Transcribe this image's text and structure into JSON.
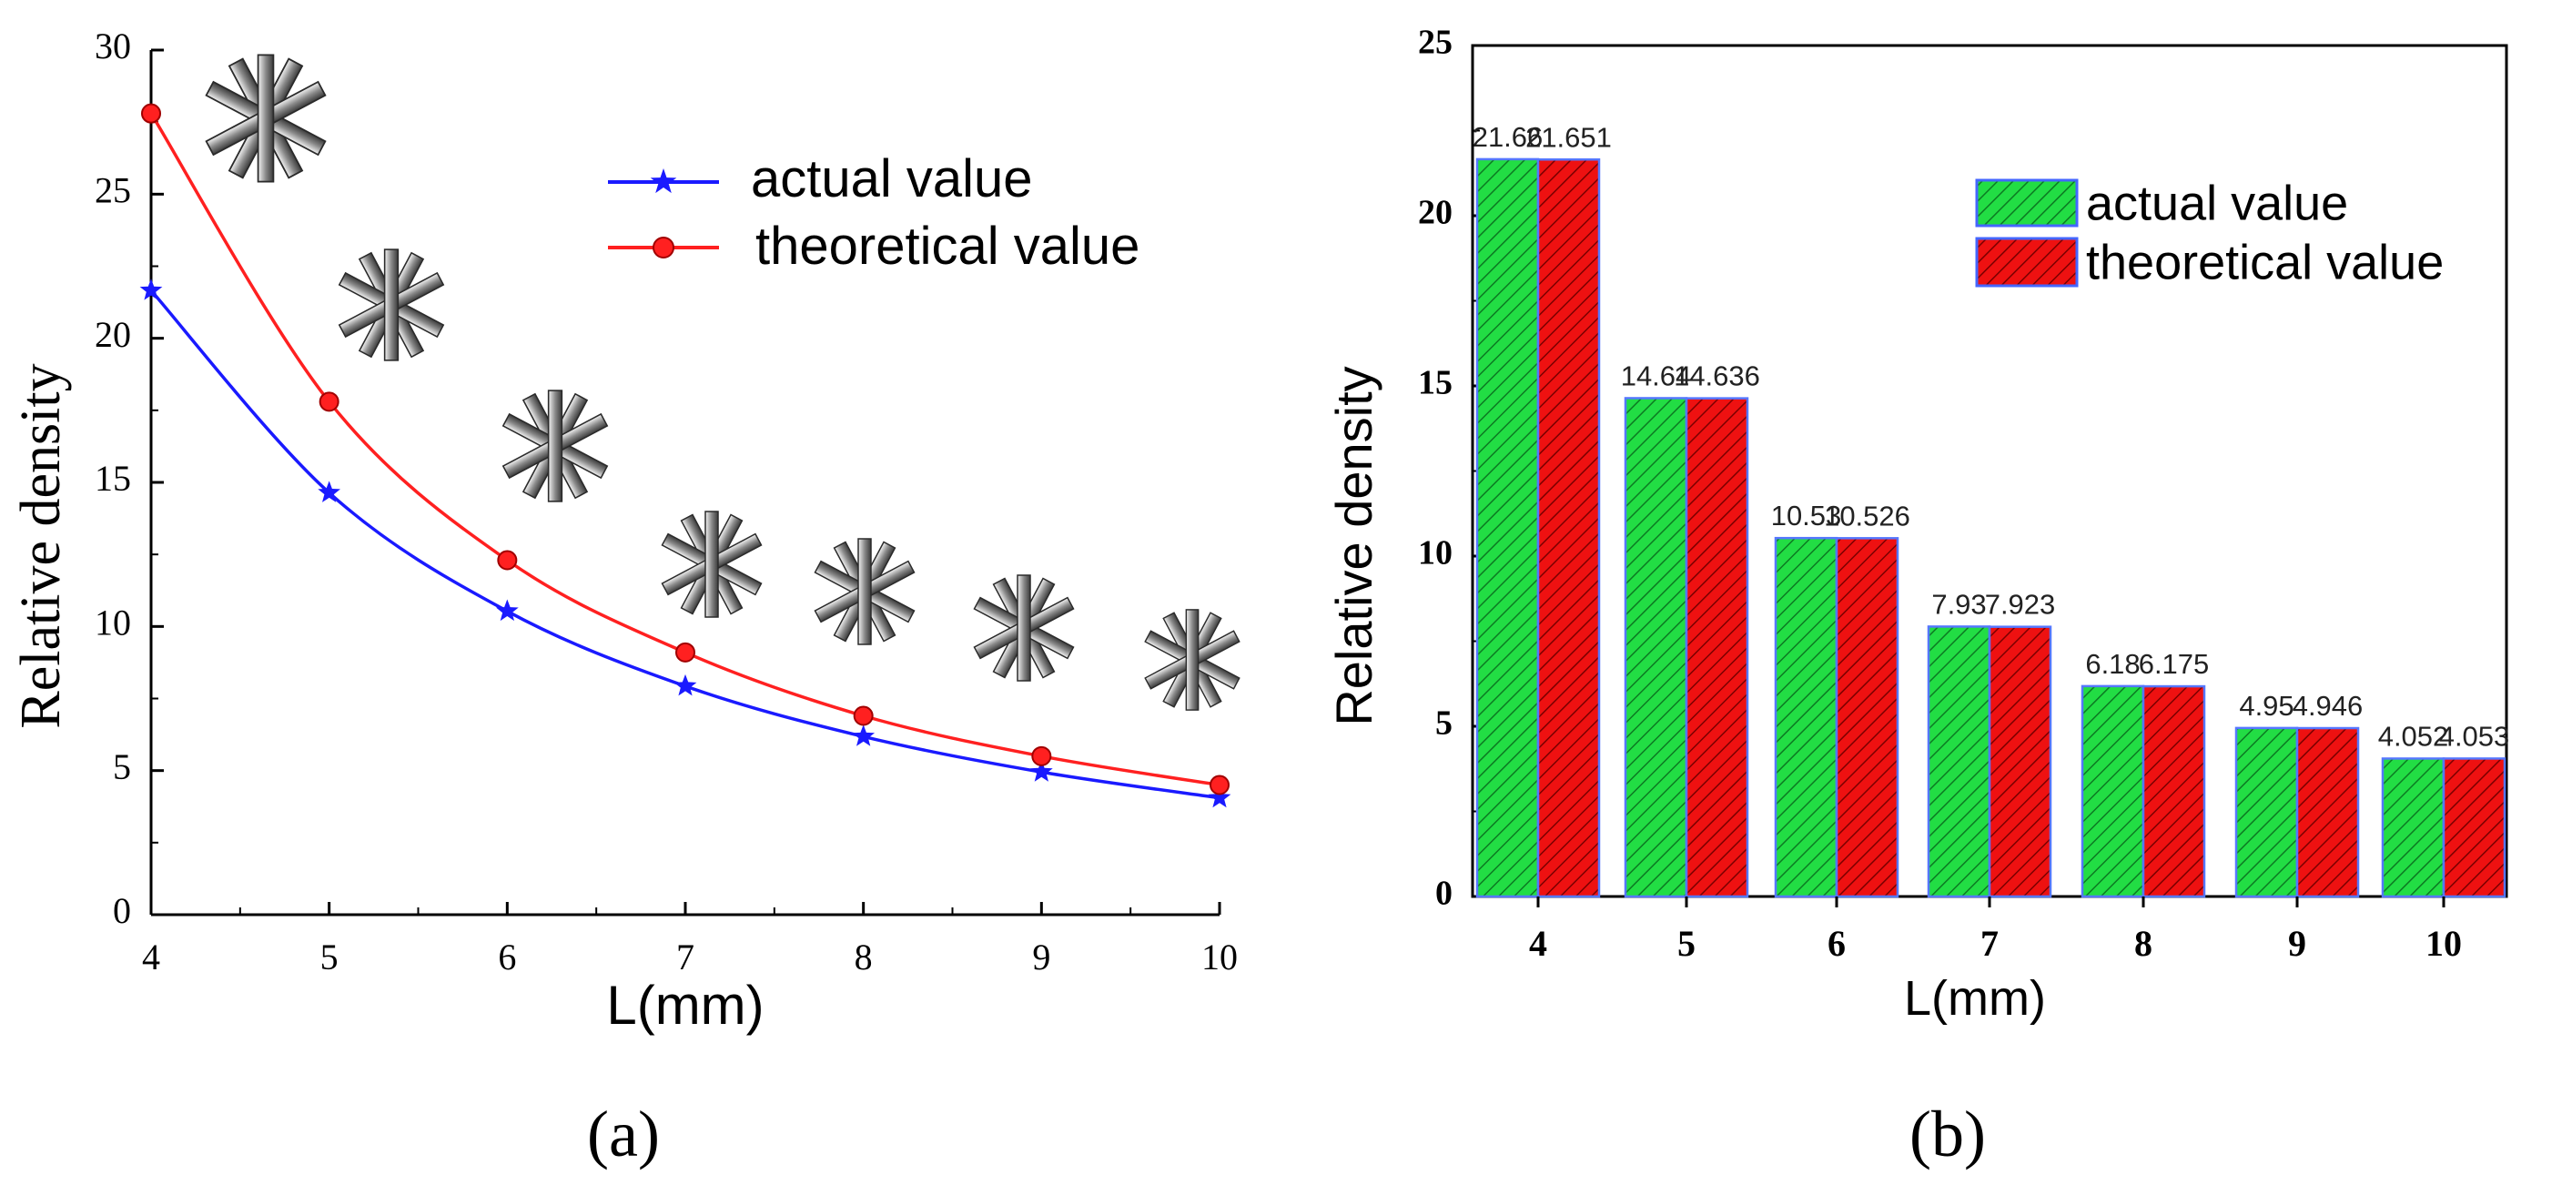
{
  "chart_data": [
    {
      "type": "line",
      "panel_label": "(a)",
      "xlabel": "L(mm)",
      "ylabel": "Relative density",
      "xlim": [
        4,
        10
      ],
      "ylim": [
        0,
        30
      ],
      "x_ticks": [
        "4",
        "5",
        "6",
        "7",
        "8",
        "9",
        "10"
      ],
      "y_ticks": [
        "0",
        "5",
        "10",
        "15",
        "20",
        "25",
        "30"
      ],
      "x": [
        4,
        5,
        6,
        7,
        8,
        9,
        10
      ],
      "legend_position": "top-right",
      "series": [
        {
          "name": "actual value",
          "color": "#1a1aff",
          "marker": "star",
          "values": [
            21.66,
            14.64,
            10.53,
            7.93,
            6.18,
            4.95,
            4.052
          ]
        },
        {
          "name": "theoretical value",
          "color": "#ff2020",
          "marker": "circle",
          "values": [
            27.8,
            17.8,
            12.3,
            9.1,
            6.9,
            5.5,
            4.5
          ]
        }
      ],
      "annotations": "lattice unit-cell thumbnails above each point"
    },
    {
      "type": "bar",
      "panel_label": "(b)",
      "xlabel": "L(mm)",
      "ylabel": "Relative  density",
      "ylim": [
        0,
        25
      ],
      "y_ticks": [
        "0",
        "5",
        "10",
        "15",
        "20",
        "25"
      ],
      "categories": [
        "4",
        "5",
        "6",
        "7",
        "8",
        "9",
        "10"
      ],
      "legend_position": "top-right",
      "series": [
        {
          "name": "actual value",
          "color": "#22dd44",
          "values": [
            21.66,
            14.64,
            10.53,
            7.93,
            6.18,
            4.95,
            4.052
          ],
          "labels": [
            "21.66",
            "14.64",
            "10.53",
            "7.93",
            "6.18",
            "4.95",
            "4.052"
          ]
        },
        {
          "name": "theoretical value",
          "color": "#ee1111",
          "values": [
            21.651,
            14.636,
            10.526,
            7.923,
            6.175,
            4.946,
            4.053
          ],
          "labels": [
            "21.651",
            "14.636",
            "10.526",
            "7.923",
            "6.175",
            "4.946",
            "4.053"
          ]
        }
      ]
    }
  ]
}
